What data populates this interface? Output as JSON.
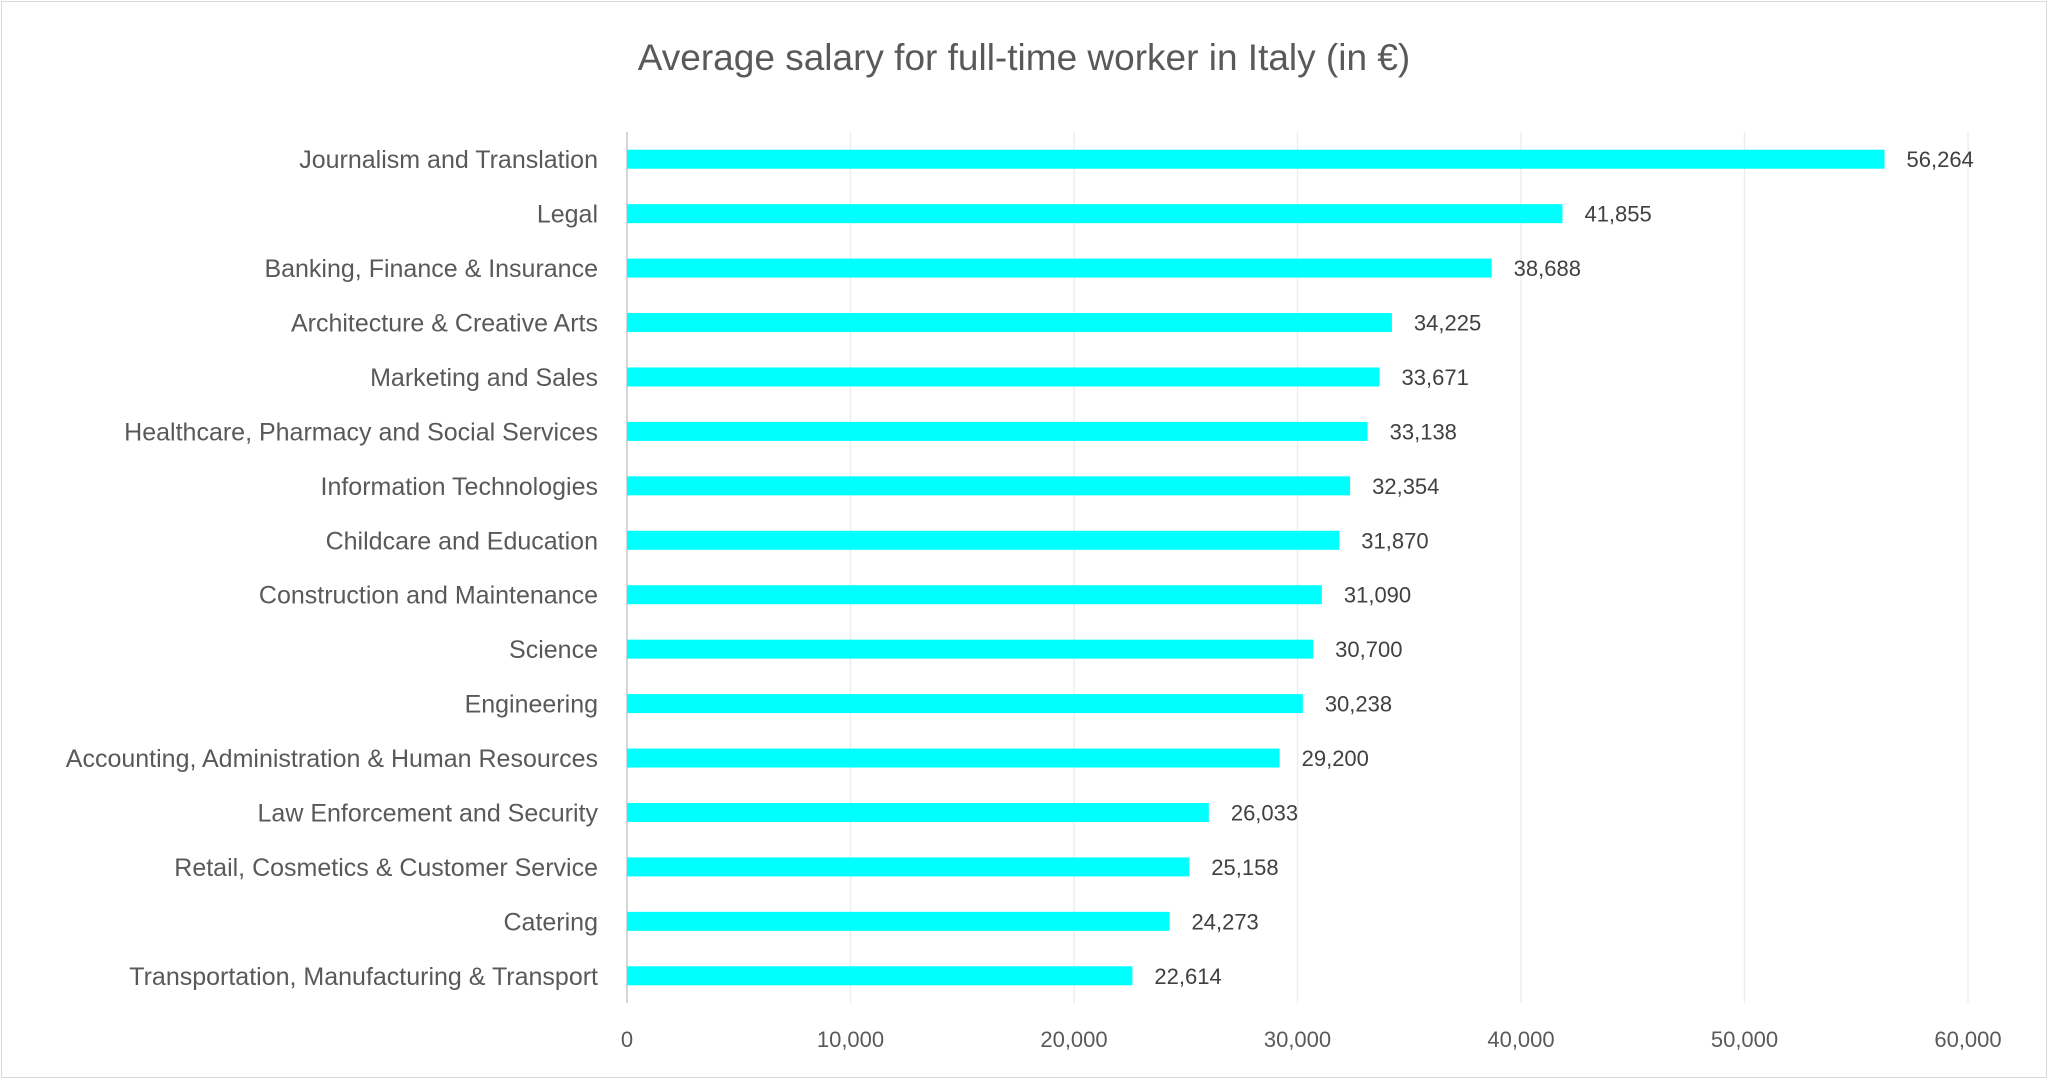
{
  "chart_data": {
    "type": "bar",
    "orientation": "horizontal",
    "title": "Average salary for full-time worker in Italy (in €)",
    "xlabel": "",
    "ylabel": "",
    "xlim": [
      0,
      60000
    ],
    "ticks": [
      "0",
      "10,000",
      "20,000",
      "30,000",
      "40,000",
      "50,000",
      "60,000"
    ],
    "tick_values": [
      0,
      10000,
      20000,
      30000,
      40000,
      50000,
      60000
    ],
    "grid": true,
    "legend": "none",
    "bar_color": "#00FFFF",
    "categories": [
      "Journalism and Translation",
      "Legal",
      "Banking, Finance & Insurance",
      "Architecture & Creative Arts",
      "Marketing and Sales",
      "Healthcare, Pharmacy and Social Services",
      "Information Technologies",
      "Childcare and Education",
      "Construction and Maintenance",
      "Science",
      "Engineering",
      "Accounting, Administration & Human Resources",
      "Law Enforcement and Security",
      "Retail, Cosmetics & Customer Service",
      "Catering",
      "Transportation, Manufacturing & Transport"
    ],
    "values": [
      56264,
      41855,
      38688,
      34225,
      33671,
      33138,
      32354,
      31870,
      31090,
      30700,
      30238,
      29200,
      26033,
      25158,
      24273,
      22614
    ],
    "data_labels": [
      "56,264",
      "41,855",
      "38,688",
      "34,225",
      "33,671",
      "33,138",
      "32,354",
      "31,870",
      "31,090",
      "30,700",
      "30,238",
      "29,200",
      "26,033",
      "25,158",
      "24,273",
      "22,614"
    ]
  }
}
